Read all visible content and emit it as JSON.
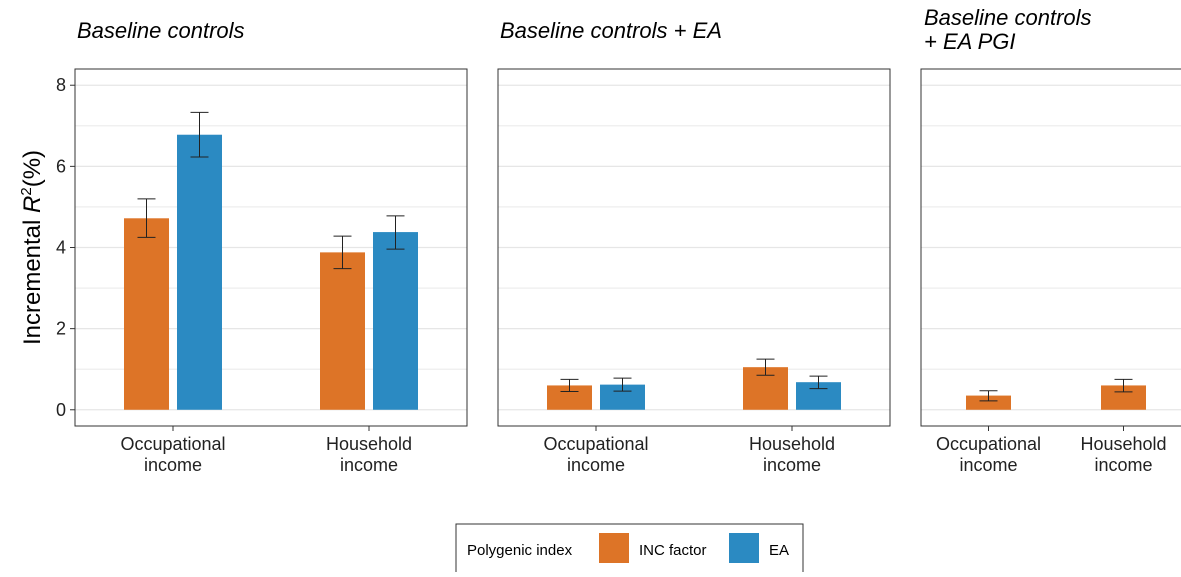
{
  "colors": {
    "inc_factor": "#dd7427",
    "ea": "#2b8ac2",
    "grid": "#e6e6e6",
    "panel_border": "#333333",
    "errorbar": "#222222"
  },
  "chart_data": {
    "type": "bar",
    "ylabel": {
      "prefix": "Incremental ",
      "var": "R",
      "sup": "2",
      "suffix": "(%)"
    },
    "ylim": [
      -0.4,
      8.4
    ],
    "yticks": [
      "0",
      "2",
      "4",
      "6",
      "8"
    ],
    "grid": true,
    "legend": {
      "position": "bottom",
      "title": "Polygenic index",
      "entries": [
        "INC factor",
        "EA"
      ]
    },
    "panels": [
      {
        "title_lines": [
          "Baseline controls"
        ],
        "categories": [
          [
            "Occupational",
            "income"
          ],
          [
            "Household",
            "income"
          ]
        ],
        "series": [
          {
            "name": "INC factor",
            "values": [
              4.72,
              3.88
            ],
            "ci_low": [
              4.25,
              3.48
            ],
            "ci_high": [
              5.2,
              4.28
            ]
          },
          {
            "name": "EA",
            "values": [
              6.78,
              4.38
            ],
            "ci_low": [
              6.23,
              3.96
            ],
            "ci_high": [
              7.33,
              4.78
            ]
          }
        ]
      },
      {
        "title_lines": [
          "Baseline controls + EA"
        ],
        "categories": [
          [
            "Occupational",
            "income"
          ],
          [
            "Household",
            "income"
          ]
        ],
        "series": [
          {
            "name": "INC factor",
            "values": [
              0.6,
              1.05
            ],
            "ci_low": [
              0.45,
              0.85
            ],
            "ci_high": [
              0.75,
              1.25
            ]
          },
          {
            "name": "EA",
            "values": [
              0.62,
              0.68
            ],
            "ci_low": [
              0.46,
              0.52
            ],
            "ci_high": [
              0.78,
              0.83
            ]
          }
        ]
      },
      {
        "title_lines": [
          "Baseline controls",
          "+ EA PGI"
        ],
        "categories": [
          [
            "Occupational",
            "income"
          ],
          [
            "Household",
            "income"
          ]
        ],
        "series": [
          {
            "name": "INC factor",
            "values": [
              0.35,
              0.6
            ],
            "ci_low": [
              0.22,
              0.44
            ],
            "ci_high": [
              0.47,
              0.75
            ]
          }
        ]
      }
    ]
  }
}
